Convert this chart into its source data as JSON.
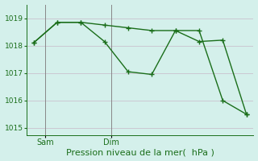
{
  "line1_x": [
    0,
    1,
    2,
    3,
    4,
    5,
    6,
    7,
    8,
    9
  ],
  "line1_y": [
    1018.1,
    1018.85,
    1018.85,
    1018.15,
    1017.05,
    1016.95,
    1018.55,
    1018.55,
    1016.0,
    1015.5
  ],
  "line2_x": [
    0,
    1,
    2,
    3,
    4,
    5,
    6,
    7,
    8,
    9
  ],
  "line2_y": [
    1018.1,
    1018.85,
    1018.85,
    1018.75,
    1018.65,
    1018.55,
    1018.55,
    1018.15,
    1018.2,
    1015.5
  ],
  "line_color": "#1a6e1a",
  "marker": "+",
  "markersize": 4,
  "linewidth": 1.0,
  "bg_color": "#d4f0eb",
  "grid_color": "#c8b8c8",
  "tick_color": "#1a6e1a",
  "xlabel": "Pression niveau de la mer(  hPa )",
  "xlabel_color": "#1a6e1a",
  "xlabel_fontsize": 8,
  "ylim": [
    1014.75,
    1019.5
  ],
  "yticks": [
    1015,
    1016,
    1017,
    1018,
    1019
  ],
  "ytick_fontsize": 6.5,
  "xtick_fontsize": 7,
  "sam_x": 0.5,
  "dim_x": 3.3,
  "sam_label": "Sam",
  "dim_label": "Dim",
  "vline_color": "#888888",
  "vline_lw": 0.7,
  "xlim_min": -0.3,
  "xlim_max": 9.3
}
